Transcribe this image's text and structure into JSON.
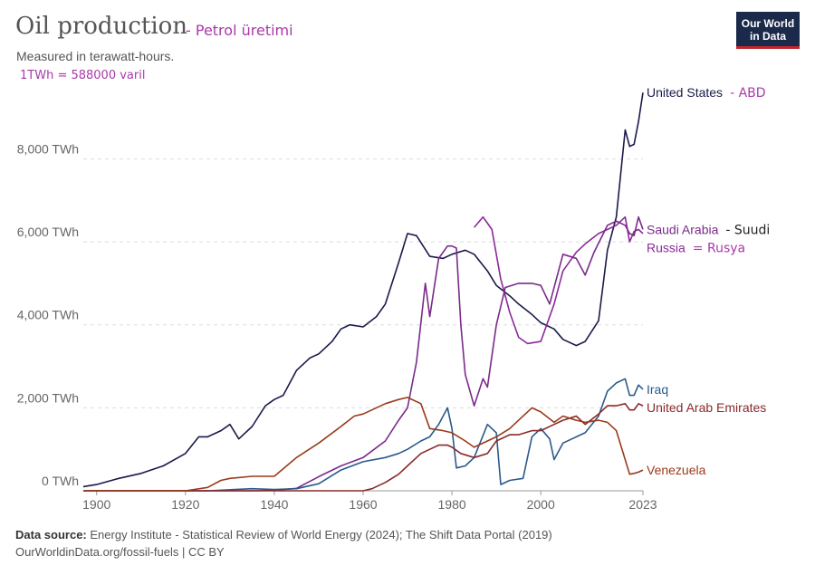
{
  "header": {
    "title": "Oil production",
    "title_annotation": "- Petrol üretimi",
    "subtitle": "Measured in terawatt-hours.",
    "unit_annotation": "1TWh = 588000 varil"
  },
  "logo": {
    "line1": "Our World",
    "line2": "in Data"
  },
  "footer": {
    "source_label": "Data source:",
    "source_text": "Energy Institute - Statistical Review of World Energy (2024); The Shift Data Portal (2019)",
    "url_text": "OurWorldinData.org/fossil-fuels | CC BY"
  },
  "chart_data": {
    "type": "line",
    "xlim": [
      1897,
      2023
    ],
    "ylim": [
      0,
      9800
    ],
    "yticks": [
      0,
      2000,
      4000,
      6000,
      8000
    ],
    "ytick_labels": [
      "0 TWh",
      "2,000 TWh",
      "4,000 TWh",
      "6,000 TWh",
      "8,000 TWh"
    ],
    "xticks": [
      1900,
      1920,
      1940,
      1960,
      1980,
      2000,
      2023
    ],
    "xtick_labels": [
      "1900",
      "1920",
      "1940",
      "1960",
      "1980",
      "2000",
      "2023"
    ],
    "grid": true,
    "series": [
      {
        "name": "United States",
        "annotation": "- ABD",
        "color": "#1a1a4a",
        "annotation_color": "#a83aa8",
        "x": [
          1897,
          1900,
          1905,
          1910,
          1915,
          1920,
          1923,
          1925,
          1928,
          1930,
          1932,
          1935,
          1938,
          1940,
          1942,
          1945,
          1948,
          1950,
          1953,
          1955,
          1957,
          1960,
          1963,
          1965,
          1968,
          1970,
          1972,
          1975,
          1978,
          1980,
          1983,
          1985,
          1988,
          1990,
          1993,
          1995,
          1998,
          2000,
          2003,
          2005,
          2008,
          2010,
          2013,
          2015,
          2017,
          2019,
          2020,
          2021,
          2022,
          2023
        ],
        "y": [
          100,
          150,
          300,
          420,
          600,
          900,
          1300,
          1300,
          1450,
          1600,
          1250,
          1550,
          2050,
          2200,
          2300,
          2900,
          3200,
          3300,
          3600,
          3900,
          4000,
          3950,
          4200,
          4500,
          5500,
          6200,
          6150,
          5650,
          5600,
          5700,
          5800,
          5700,
          5300,
          4950,
          4700,
          4500,
          4250,
          4050,
          3900,
          3650,
          3500,
          3600,
          4100,
          5800,
          6600,
          8700,
          8300,
          8350,
          8900,
          9600
        ]
      },
      {
        "name": "Russia",
        "annotation": "= Rusya",
        "color": "#8a2a9a",
        "annotation_color": "#a83aa8",
        "x": [
          1985,
          1987,
          1989,
          1991,
          1993,
          1995,
          1997,
          2000,
          2003,
          2005,
          2008,
          2010,
          2013,
          2015,
          2017,
          2019,
          2020,
          2021,
          2022,
          2023
        ],
        "y": [
          6350,
          6600,
          6300,
          5100,
          4300,
          3700,
          3550,
          3600,
          4500,
          5300,
          5750,
          5950,
          6200,
          6300,
          6400,
          6600,
          6000,
          6250,
          6300,
          6200
        ]
      },
      {
        "name": "Saudi Arabia",
        "annotation": "- Suudi",
        "color": "#7a2a8a",
        "annotation_color": "#222222",
        "x": [
          1897,
          1935,
          1940,
          1945,
          1950,
          1955,
          1960,
          1965,
          1968,
          1970,
          1972,
          1974,
          1975,
          1977,
          1979,
          1980,
          1981,
          1982,
          1983,
          1985,
          1987,
          1988,
          1990,
          1992,
          1995,
          1998,
          2000,
          2002,
          2005,
          2008,
          2010,
          2012,
          2015,
          2017,
          2019,
          2020,
          2021,
          2022,
          2023
        ],
        "y": [
          0,
          0,
          10,
          60,
          340,
          600,
          800,
          1200,
          1700,
          2000,
          3100,
          5000,
          4200,
          5600,
          5900,
          5900,
          5850,
          4000,
          2800,
          2050,
          2700,
          2500,
          4000,
          4900,
          5000,
          5000,
          4950,
          4500,
          5700,
          5600,
          5200,
          5750,
          6400,
          6500,
          6400,
          6200,
          6150,
          6600,
          6300
        ]
      },
      {
        "name": "Iraq",
        "annotation": "",
        "color": "#2a5a8a",
        "annotation_color": "#a83aa8",
        "x": [
          1897,
          1925,
          1935,
          1940,
          1945,
          1950,
          1955,
          1960,
          1965,
          1968,
          1970,
          1973,
          1975,
          1977,
          1979,
          1980,
          1981,
          1983,
          1985,
          1988,
          1990,
          1991,
          1993,
          1996,
          1998,
          2000,
          2002,
          2003,
          2005,
          2008,
          2010,
          2013,
          2015,
          2017,
          2019,
          2020,
          2021,
          2022,
          2023
        ],
        "y": [
          0,
          0,
          50,
          30,
          50,
          170,
          500,
          700,
          800,
          900,
          1000,
          1200,
          1300,
          1600,
          2000,
          1500,
          550,
          600,
          800,
          1600,
          1400,
          150,
          250,
          300,
          1300,
          1500,
          1250,
          750,
          1150,
          1300,
          1400,
          1800,
          2400,
          2600,
          2700,
          2300,
          2300,
          2550,
          2450
        ]
      },
      {
        "name": "United Arab Emirates",
        "annotation": "",
        "color": "#8a2a2a",
        "annotation_color": "#a83aa8",
        "x": [
          1897,
          1960,
          1962,
          1965,
          1968,
          1970,
          1973,
          1975,
          1977,
          1979,
          1980,
          1982,
          1985,
          1988,
          1990,
          1993,
          1995,
          1998,
          2000,
          2003,
          2005,
          2008,
          2010,
          2013,
          2015,
          2017,
          2019,
          2020,
          2021,
          2022,
          2023
        ],
        "y": [
          0,
          0,
          50,
          200,
          400,
          600,
          900,
          1000,
          1100,
          1100,
          1050,
          900,
          800,
          900,
          1200,
          1350,
          1350,
          1450,
          1450,
          1600,
          1700,
          1800,
          1600,
          1850,
          2050,
          2050,
          2100,
          1950,
          1950,
          2100,
          2050
        ]
      },
      {
        "name": "Venezuela",
        "annotation": "",
        "color": "#9a3a1a",
        "annotation_color": "#a83aa8",
        "x": [
          1897,
          1920,
          1925,
          1928,
          1930,
          1935,
          1940,
          1945,
          1950,
          1955,
          1958,
          1960,
          1965,
          1968,
          1970,
          1973,
          1975,
          1978,
          1980,
          1983,
          1985,
          1988,
          1990,
          1993,
          1995,
          1998,
          2000,
          2003,
          2005,
          2008,
          2010,
          2013,
          2015,
          2017,
          2019,
          2020,
          2021,
          2022,
          2023
        ],
        "y": [
          0,
          0,
          80,
          250,
          300,
          350,
          350,
          800,
          1150,
          1550,
          1800,
          1850,
          2100,
          2200,
          2250,
          2100,
          1500,
          1450,
          1400,
          1200,
          1050,
          1200,
          1300,
          1500,
          1700,
          2000,
          1900,
          1650,
          1800,
          1700,
          1650,
          1700,
          1650,
          1450,
          750,
          400,
          420,
          450,
          500
        ]
      }
    ]
  }
}
